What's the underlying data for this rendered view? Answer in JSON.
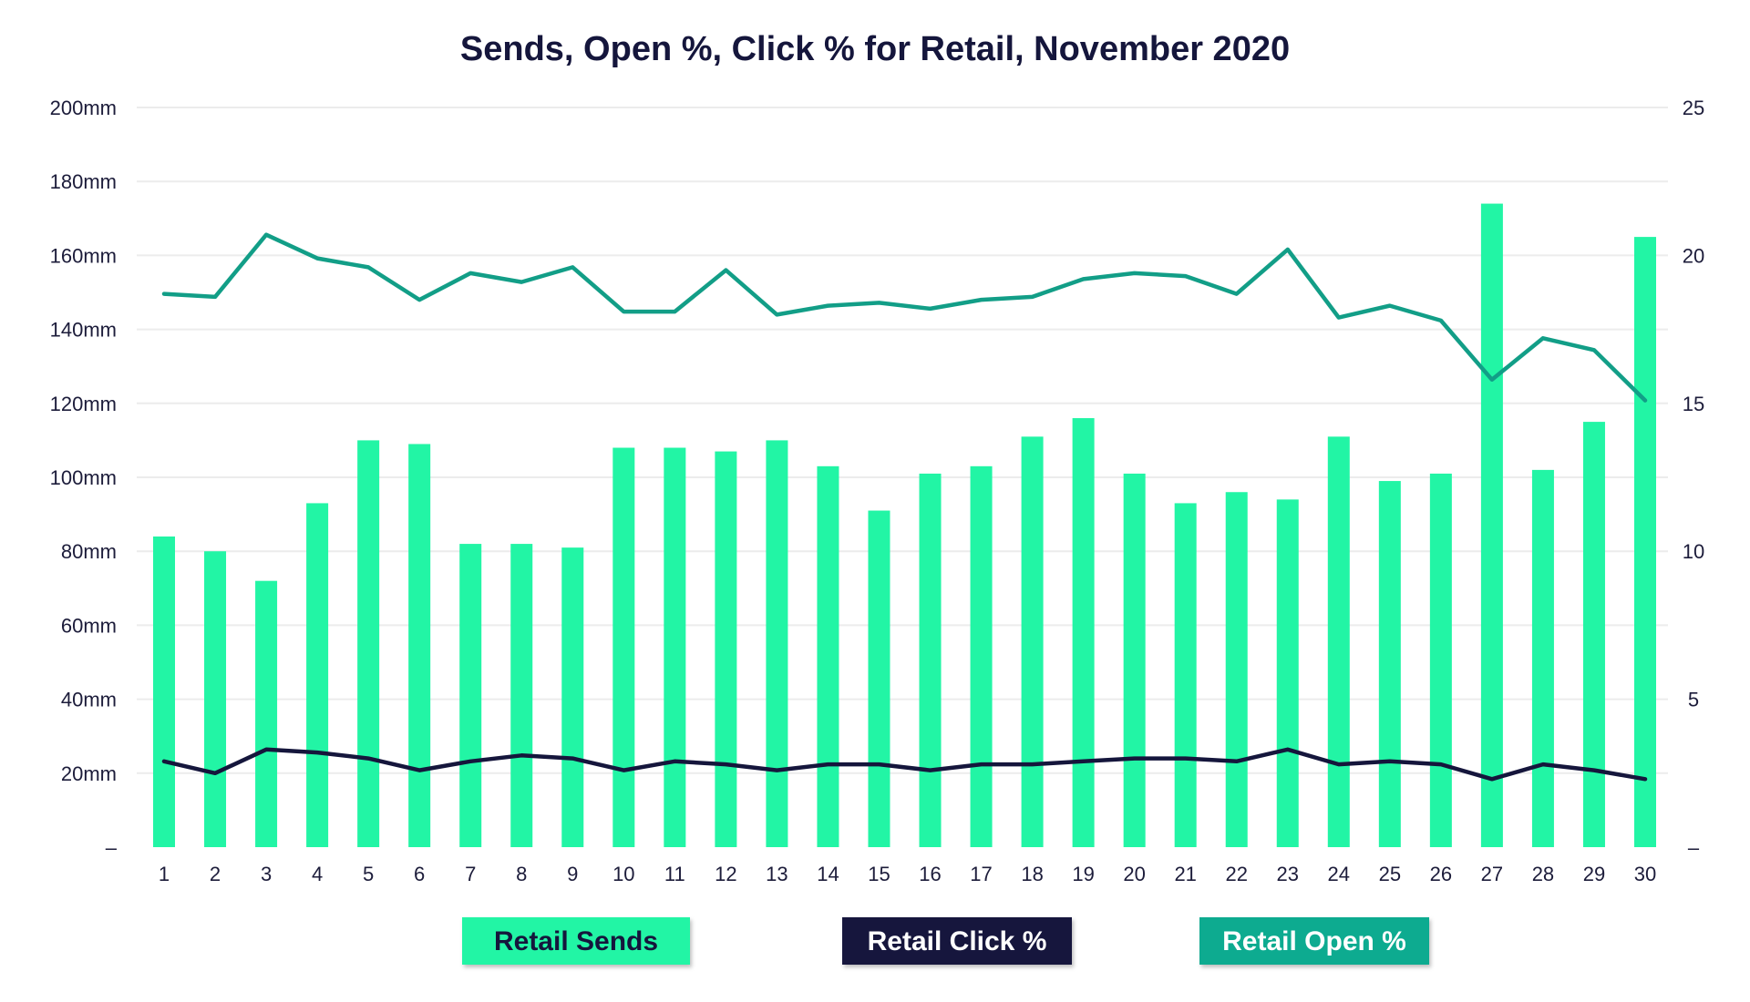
{
  "chart_data": {
    "type": "bar+line",
    "title": "Sends, Open %, Click % for Retail, November 2020",
    "categories": [
      "1",
      "2",
      "3",
      "4",
      "5",
      "6",
      "7",
      "8",
      "9",
      "10",
      "11",
      "12",
      "13",
      "14",
      "15",
      "16",
      "17",
      "18",
      "19",
      "20",
      "21",
      "22",
      "23",
      "24",
      "25",
      "26",
      "27",
      "28",
      "29",
      "30"
    ],
    "left_axis": {
      "ylim": [
        0,
        200
      ],
      "ticks": [
        0,
        20,
        40,
        60,
        80,
        100,
        120,
        140,
        160,
        180,
        200
      ],
      "tick_labels": [
        "–",
        "20mm",
        "40mm",
        "60mm",
        "80mm",
        "100mm",
        "120mm",
        "140mm",
        "160mm",
        "180mm",
        "200mm"
      ]
    },
    "right_axis": {
      "ylim": [
        0,
        25
      ],
      "ticks": [
        0,
        5,
        10,
        15,
        20,
        25
      ],
      "tick_labels": [
        "–",
        "5",
        "10",
        "15",
        "20",
        "25"
      ]
    },
    "grid": true,
    "legend_position": "bottom",
    "series": [
      {
        "name": "Retail Sends",
        "type": "bar",
        "axis": "left",
        "color": "#22f5a5",
        "values": [
          84,
          80,
          72,
          93,
          110,
          109,
          82,
          82,
          81,
          108,
          108,
          107,
          110,
          103,
          91,
          101,
          103,
          111,
          116,
          101,
          93,
          96,
          94,
          111,
          99,
          101,
          174,
          102,
          115,
          165
        ]
      },
      {
        "name": "Retail Click %",
        "type": "line",
        "axis": "right",
        "color": "#15163c",
        "values": [
          2.9,
          2.5,
          3.3,
          3.2,
          3.0,
          2.6,
          2.9,
          3.1,
          3.0,
          2.6,
          2.9,
          2.8,
          2.6,
          2.8,
          2.8,
          2.6,
          2.8,
          2.8,
          2.9,
          3.0,
          3.0,
          2.9,
          3.3,
          2.8,
          2.9,
          2.8,
          2.3,
          2.8,
          2.6,
          2.3
        ]
      },
      {
        "name": "Retail Open %",
        "type": "line",
        "axis": "right",
        "color": "#129e87",
        "values": [
          18.7,
          18.6,
          20.7,
          19.9,
          19.6,
          18.5,
          19.4,
          19.1,
          19.6,
          18.1,
          18.1,
          19.5,
          18.0,
          18.3,
          18.4,
          18.2,
          18.5,
          18.6,
          19.2,
          19.4,
          19.3,
          18.7,
          20.2,
          17.9,
          18.3,
          17.8,
          15.8,
          17.2,
          16.8,
          15.1
        ]
      }
    ],
    "legend": [
      {
        "label": "Retail Sends",
        "bg": "#22f5a5",
        "fg": "#15163c"
      },
      {
        "label": "Retail Click %",
        "bg": "#15163c",
        "fg": "#ffffff"
      },
      {
        "label": "Retail Open %",
        "bg": "#0fab90",
        "fg": "#ffffff"
      }
    ]
  }
}
